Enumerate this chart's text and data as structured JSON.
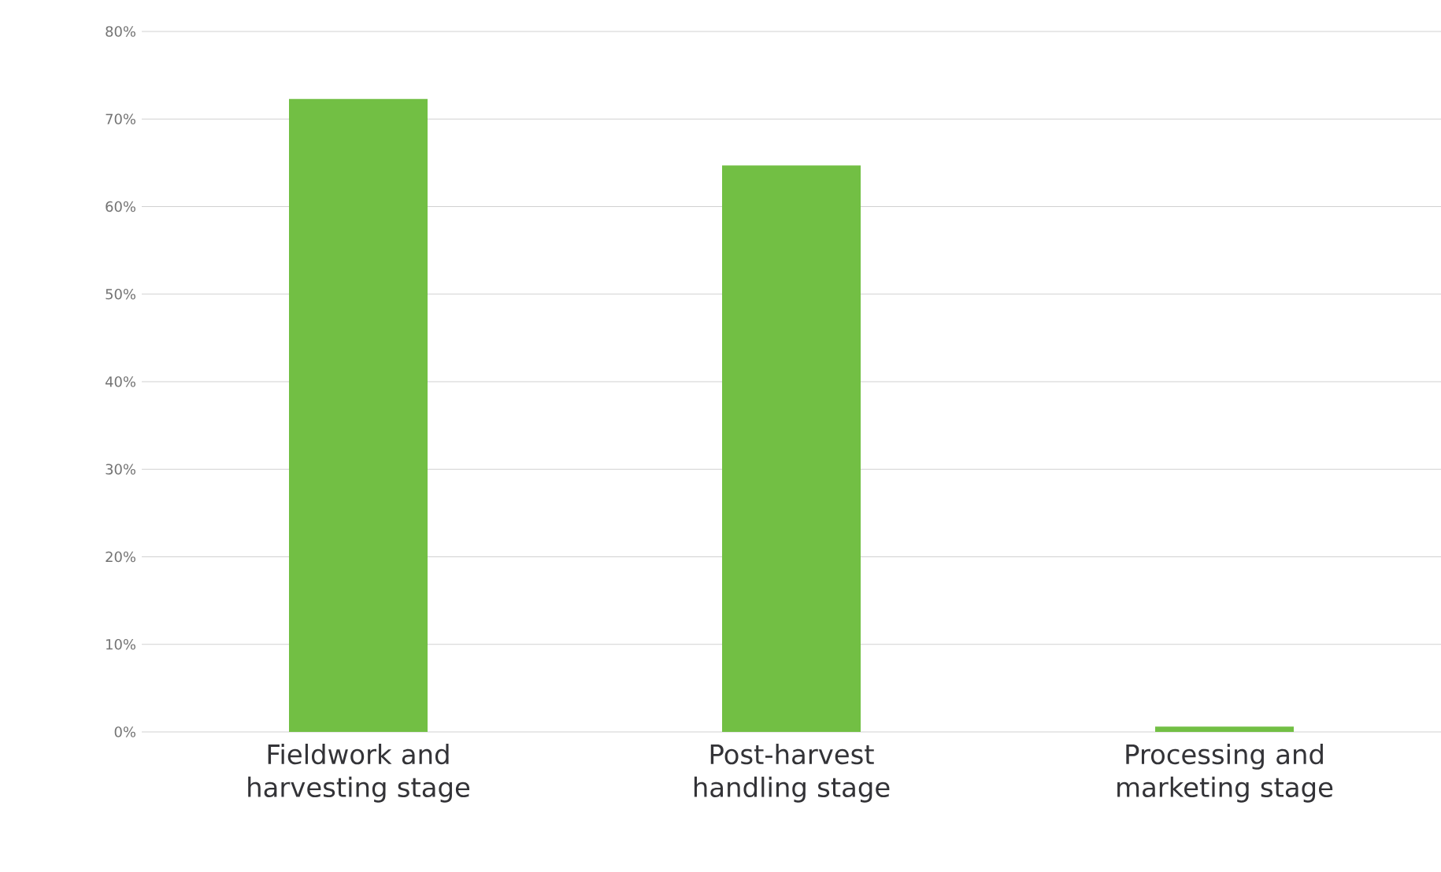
{
  "chart_data": {
    "type": "bar",
    "categories": [
      "Fieldwork and harvesting stage",
      "Post-harvest handling stage",
      "Processing and marketing stage"
    ],
    "values": [
      72.3,
      64.7,
      0.6
    ],
    "color": "#72bf44",
    "ylim": [
      0,
      80
    ],
    "yticks": [
      {
        "value": 0,
        "label": "0%"
      },
      {
        "value": 10,
        "label": "10%"
      },
      {
        "value": 20,
        "label": "20%"
      },
      {
        "value": 30,
        "label": "30%"
      },
      {
        "value": 40,
        "label": "40%"
      },
      {
        "value": 50,
        "label": "50%"
      },
      {
        "value": 60,
        "label": "60%"
      },
      {
        "value": 70,
        "label": "70%"
      },
      {
        "value": 80,
        "label": "80%"
      }
    ],
    "grid": "y"
  }
}
